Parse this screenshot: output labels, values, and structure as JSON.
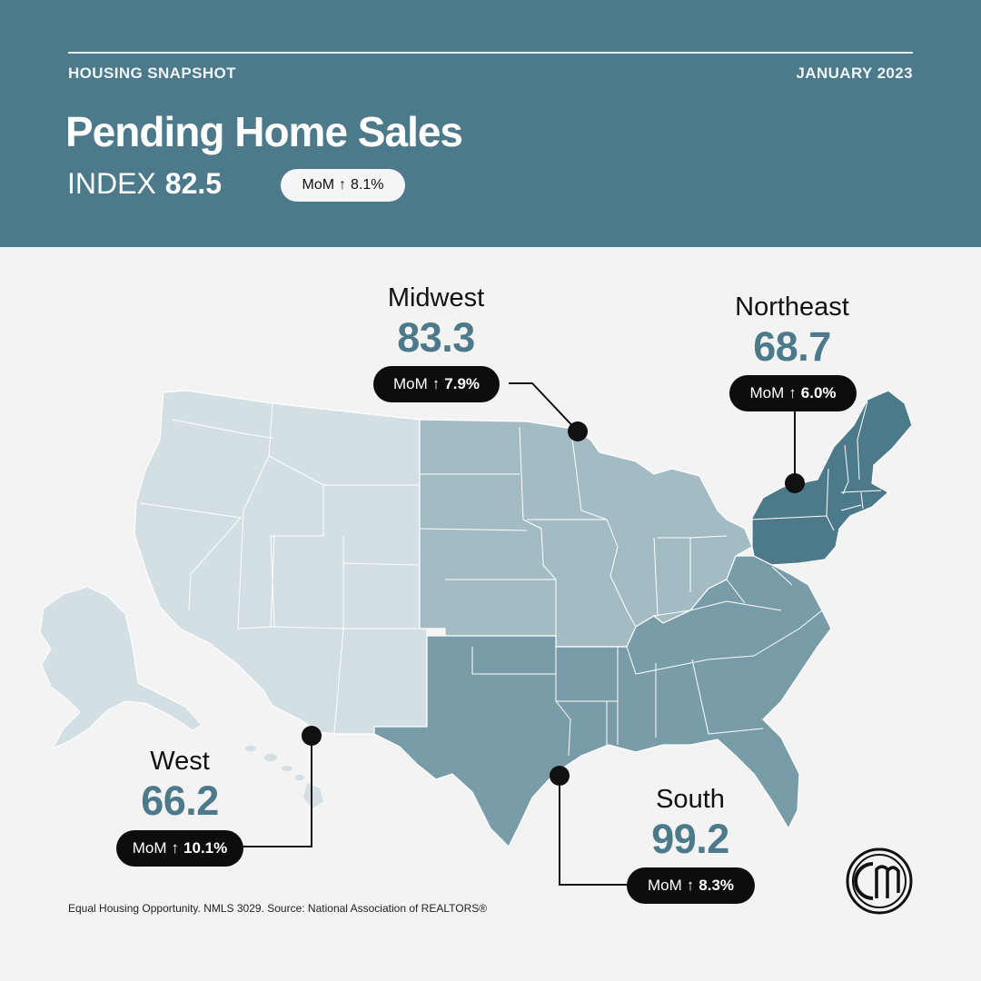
{
  "header": {
    "eyebrow_left": "HOUSING SNAPSHOT",
    "eyebrow_right": "JANUARY 2023",
    "title": "Pending Home Sales",
    "index_label": "INDEX",
    "index_value": "82.5",
    "mom_label": "MoM",
    "mom_arrow": "↑",
    "mom_value": "8.1%"
  },
  "regions": {
    "midwest": {
      "name": "Midwest",
      "value": "83.3",
      "mom_label": "MoM",
      "arrow": "↑",
      "mom": "7.9%"
    },
    "northeast": {
      "name": "Northeast",
      "value": "68.7",
      "mom_label": "MoM",
      "arrow": "↑",
      "mom": "6.0%"
    },
    "west": {
      "name": "West",
      "value": "66.2",
      "mom_label": "MoM",
      "arrow": "↑",
      "mom": "10.1%"
    },
    "south": {
      "name": "South",
      "value": "99.2",
      "mom_label": "MoM",
      "arrow": "↑",
      "mom": "8.3%"
    }
  },
  "colors": {
    "header_bg": "#4c7a8a",
    "west": "#d3dfe3",
    "midwest": "#a3bcc4",
    "south": "#789ca8",
    "northeast": "#4c7a8a",
    "value_text": "#4c7a8a"
  },
  "footer": {
    "text": "Equal Housing Opportunity. NMLS 3029. Source: National Association of REALTORS®"
  },
  "logo": {
    "icon": "cm-logo-icon",
    "text": "CM"
  }
}
